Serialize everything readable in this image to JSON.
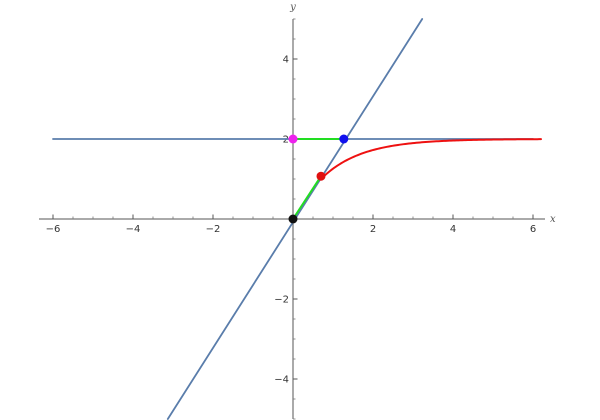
{
  "chart_data": {
    "type": "line",
    "xlabel": "x",
    "ylabel": "y",
    "xlim": [
      -6.2,
      6.2
    ],
    "ylim": [
      -5,
      5
    ],
    "x_ticks": [
      -6,
      -4,
      -2,
      2,
      4,
      6
    ],
    "y_ticks": [
      -4,
      -2,
      2,
      4
    ],
    "x_tick_labels": [
      "−6",
      "−4",
      "−2",
      "2",
      "4",
      "6"
    ],
    "y_tick_labels": [
      "−4",
      "−2",
      "2",
      "4"
    ],
    "grid": false,
    "series": [
      {
        "kind": "line",
        "color": "#5a7dab",
        "points": [
          [
            -6,
            2
          ],
          [
            6,
            2
          ]
        ]
      },
      {
        "kind": "line",
        "color": "#5a7dab",
        "points": [
          [
            -3.13,
            -5
          ],
          [
            3.23,
            5
          ]
        ]
      },
      {
        "kind": "curve",
        "color": "#ee1111",
        "function": "2 - 2^(1 - x/0.7)",
        "x_range": [
          0.7,
          6.2
        ]
      },
      {
        "kind": "segment",
        "color": "#22dd22",
        "points": [
          [
            0,
            0
          ],
          [
            0.7,
            1.07
          ]
        ]
      },
      {
        "kind": "segment",
        "color": "#22dd22",
        "points": [
          [
            0,
            2
          ],
          [
            1.27,
            2
          ]
        ]
      }
    ],
    "points": [
      {
        "x": 0,
        "y": 0,
        "color": "#111111"
      },
      {
        "x": 0.7,
        "y": 1.07,
        "color": "#e01010"
      },
      {
        "x": 0,
        "y": 2,
        "color": "#ee22ee"
      },
      {
        "x": 1.27,
        "y": 2,
        "color": "#1010ee"
      }
    ]
  }
}
